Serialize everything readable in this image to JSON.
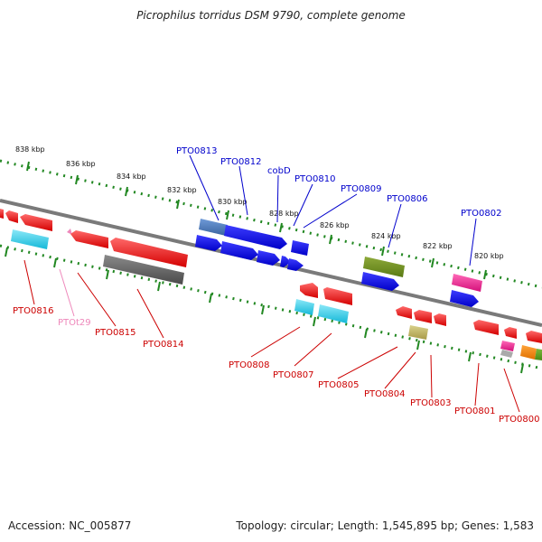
{
  "header": {
    "title": "Picrophilus torridus DSM 9790, complete genome"
  },
  "footer": {
    "accession": "Accession: NC_005877",
    "topology": "Topology: circular; Length: 1,545,895 bp; Genes: 1,583"
  },
  "ruler": {
    "ticks": [
      "838 kbp",
      "836 kbp",
      "834 kbp",
      "832 kbp",
      "830 kbp",
      "828 kbp",
      "826 kbp",
      "824 kbp",
      "822 kbp",
      "820 kbp"
    ]
  },
  "colors": {
    "top_label": "#0000cc",
    "bottom_label": "#cc0000",
    "rna_label": "#ee88bb",
    "dot_track": "#228822",
    "backbone": "#777777"
  },
  "genes_top": [
    {
      "label": "PTO0813"
    },
    {
      "label": "PTO0812"
    },
    {
      "label": "cobD"
    },
    {
      "label": "PTO0810"
    },
    {
      "label": "PTO0809"
    },
    {
      "label": "PTO0806"
    },
    {
      "label": "PTO0802"
    }
  ],
  "genes_bottom": [
    {
      "label": "PTO0816"
    },
    {
      "label": "PTOt29"
    },
    {
      "label": "PTO0815"
    },
    {
      "label": "PTO0814"
    },
    {
      "label": "PTO0808"
    },
    {
      "label": "PTO0807"
    },
    {
      "label": "PTO0805"
    },
    {
      "label": "PTO0804"
    },
    {
      "label": "PTO0803"
    },
    {
      "label": "PTO0801"
    },
    {
      "label": "PTO0800"
    }
  ]
}
